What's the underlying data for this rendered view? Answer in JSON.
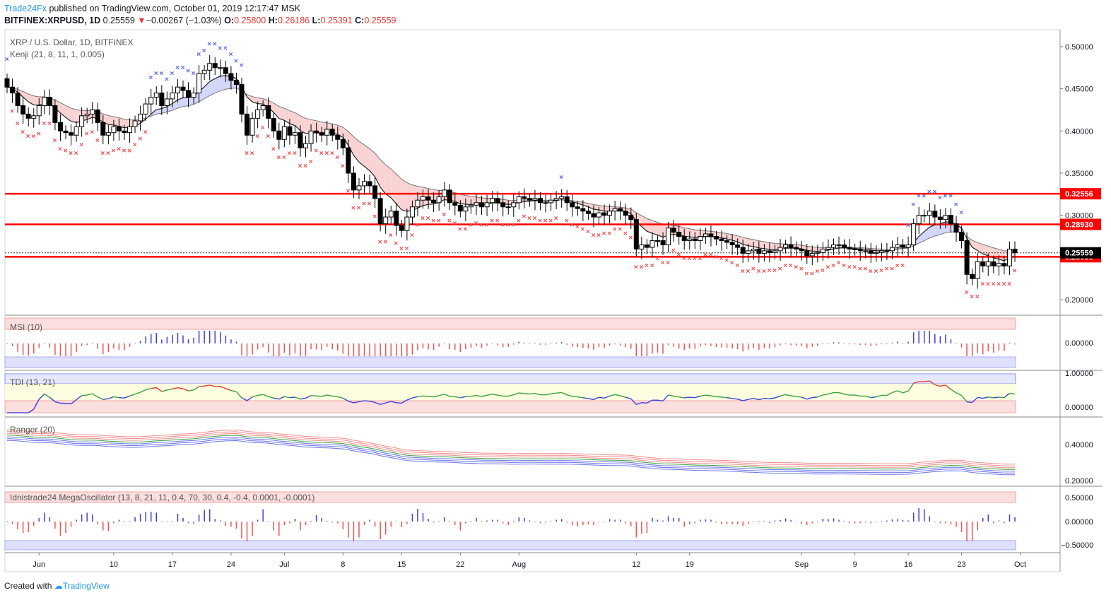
{
  "header": {
    "publisher": "Trade24Fx",
    "published_text": "published on TradingView.com, October 01, 2019 12:17:47 MSK",
    "symbol": "BITFINEX:XRPUSD, 1D",
    "last": "0.25559",
    "change": "−0.00267 (−1.03%)",
    "o_label": "O:",
    "o": "0.25800",
    "h_label": "H:",
    "h": "0.26186",
    "l_label": "L:",
    "l": "0.25391",
    "c_label": "C:",
    "c": "0.25559"
  },
  "main_pane": {
    "title": "XRP / U.S. Dollar, 1D, BITFINEX",
    "indicator": "Kenji (21, 8, 11, 1, 0.005)"
  },
  "panes": {
    "msi": "MSI (10)",
    "tdi": "TDI (13, 21)",
    "ranger": "Ranger (20)",
    "mega": "Idnistrade24 MegaOscillator (13, 8, 21, 11, 0.4, 70, 30, 0.4, -0.4, 0.0001, -0.0001)"
  },
  "footer": {
    "created_with": "Created with",
    "brand": "TradingView"
  },
  "colors": {
    "up": "#ffffff",
    "down": "#000000",
    "level": "#ff0000",
    "sell": "#ef5350",
    "buy": "#5b6ee1",
    "cloud_red": "#f8c8c8",
    "cloud_green": "#c8ecc8",
    "cloud_blue": "#c8cdf5"
  },
  "chart_data": {
    "type": "candlestick",
    "x_tick_labels": [
      "Jun",
      "10",
      "17",
      "24",
      "Jul",
      "8",
      "15",
      "22",
      "Aug",
      "12",
      "19",
      "Sep",
      "9",
      "16",
      "23",
      "Oct"
    ],
    "x_tick_bar_index": [
      6,
      20,
      31,
      42,
      52,
      63,
      74,
      85,
      96,
      118,
      128,
      149,
      159,
      169,
      179,
      190
    ],
    "y_ticks": [
      "0.50000",
      "0.45000",
      "0.40000",
      "0.35000",
      "0.30000",
      "0.20000"
    ],
    "y_range": [
      0.185,
      0.515
    ],
    "levels": [
      {
        "value": 0.32556,
        "label": "0.32556"
      },
      {
        "value": 0.2893,
        "label": "0.28930"
      },
      {
        "value": 0.2509,
        "label": "0.25090"
      }
    ],
    "last_price_label": "0.25559",
    "closes": [
      0.452,
      0.445,
      0.43,
      0.42,
      0.415,
      0.418,
      0.43,
      0.44,
      0.43,
      0.41,
      0.4,
      0.398,
      0.395,
      0.405,
      0.418,
      0.42,
      0.425,
      0.41,
      0.395,
      0.398,
      0.405,
      0.4,
      0.398,
      0.405,
      0.412,
      0.42,
      0.432,
      0.44,
      0.445,
      0.43,
      0.438,
      0.445,
      0.452,
      0.448,
      0.44,
      0.445,
      0.468,
      0.472,
      0.48,
      0.475,
      0.475,
      0.468,
      0.46,
      0.455,
      0.42,
      0.395,
      0.415,
      0.425,
      0.43,
      0.415,
      0.4,
      0.39,
      0.405,
      0.395,
      0.398,
      0.38,
      0.385,
      0.4,
      0.398,
      0.395,
      0.402,
      0.395,
      0.39,
      0.38,
      0.35,
      0.33,
      0.335,
      0.34,
      0.335,
      0.32,
      0.29,
      0.298,
      0.305,
      0.288,
      0.282,
      0.298,
      0.31,
      0.318,
      0.322,
      0.318,
      0.315,
      0.322,
      0.33,
      0.315,
      0.312,
      0.305,
      0.31,
      0.312,
      0.315,
      0.31,
      0.315,
      0.32,
      0.315,
      0.31,
      0.31,
      0.315,
      0.322,
      0.32,
      0.318,
      0.32,
      0.315,
      0.315,
      0.318,
      0.32,
      0.322,
      0.315,
      0.31,
      0.308,
      0.305,
      0.302,
      0.298,
      0.303,
      0.3,
      0.305,
      0.308,
      0.305,
      0.3,
      0.295,
      0.26,
      0.265,
      0.262,
      0.27,
      0.27,
      0.265,
      0.285,
      0.28,
      0.275,
      0.27,
      0.272,
      0.27,
      0.275,
      0.278,
      0.275,
      0.272,
      0.27,
      0.268,
      0.265,
      0.262,
      0.255,
      0.258,
      0.26,
      0.255,
      0.258,
      0.256,
      0.258,
      0.262,
      0.265,
      0.262,
      0.26,
      0.258,
      0.252,
      0.255,
      0.256,
      0.26,
      0.262,
      0.265,
      0.265,
      0.262,
      0.26,
      0.26,
      0.258,
      0.258,
      0.255,
      0.256,
      0.258,
      0.258,
      0.262,
      0.265,
      0.262,
      0.265,
      0.29,
      0.3,
      0.3,
      0.305,
      0.298,
      0.295,
      0.3,
      0.29,
      0.28,
      0.27,
      0.23,
      0.225,
      0.245,
      0.24,
      0.245,
      0.24,
      0.243,
      0.24,
      0.26,
      0.2556
    ]
  }
}
